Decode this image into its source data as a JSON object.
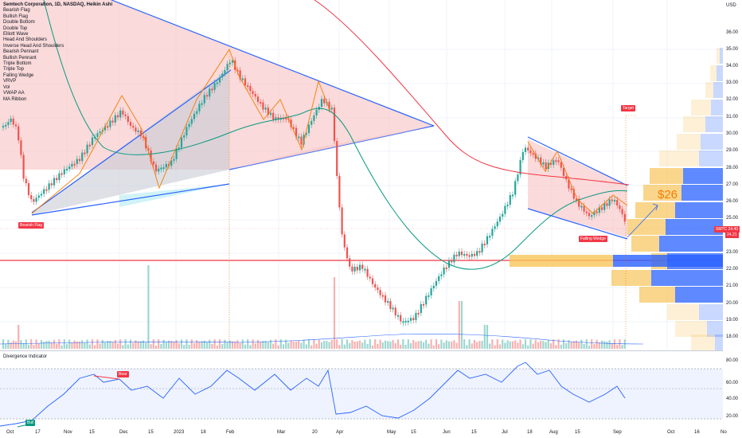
{
  "header": {
    "title": "Semtech Corporation, 1D, NASDAQ, Heikin Ashi",
    "currency": "USD"
  },
  "indicators": [
    "Bearish Flag",
    "Bullish Flag",
    "Double Bottom",
    "Double Top",
    "Elliott Wave",
    "Head And Shoulders",
    "Inverse Head And Shoulders",
    "Bearish Pennant",
    "Bullish Pennant",
    "Triple Bottom",
    "Triple Top",
    "Falling Wedge",
    "VRVP",
    "Vol",
    "VWAP AA",
    "MA Ribbon"
  ],
  "price_axis": [
    "36.00",
    "35.00",
    "34.00",
    "33.00",
    "32.00",
    "31.00",
    "30.00",
    "29.00",
    "28.00",
    "27.00",
    "26.00",
    "25.00",
    "23.00",
    "22.00",
    "21.00",
    "20.00",
    "19.00",
    "18.00"
  ],
  "osc_axis": [
    "80.00",
    "60.00",
    "40.00",
    "20.00"
  ],
  "time_axis": [
    "Oct",
    "17",
    "Nov",
    "15",
    "Dec",
    "15",
    "2023",
    "18",
    "Feb",
    "Mar",
    "20",
    "Apr",
    "May",
    "15",
    "Jun",
    "15",
    "Jul",
    "18",
    "Aug",
    "15",
    "Sep",
    "Oct",
    "16",
    "No"
  ],
  "labels": {
    "bearish_flag": "Bearish Flag",
    "target": "Target",
    "falling_wedge": "Falling Wedge",
    "target_price": "$26",
    "ticker": "SMTC",
    "last_price": "24.40",
    "price_2": "24.21",
    "divergence_title": "Divergence Indicator",
    "bear": "Bear",
    "bull": "Bull"
  },
  "colors": {
    "bull": "#26a69a",
    "bear": "#ef5350",
    "trend": "#2962ff",
    "wave": "#f57c00",
    "ma_fast": "#089981",
    "ma_slow": "#f23645",
    "vol_up": "#f7c55a",
    "vol_down": "#2962ff"
  }
}
